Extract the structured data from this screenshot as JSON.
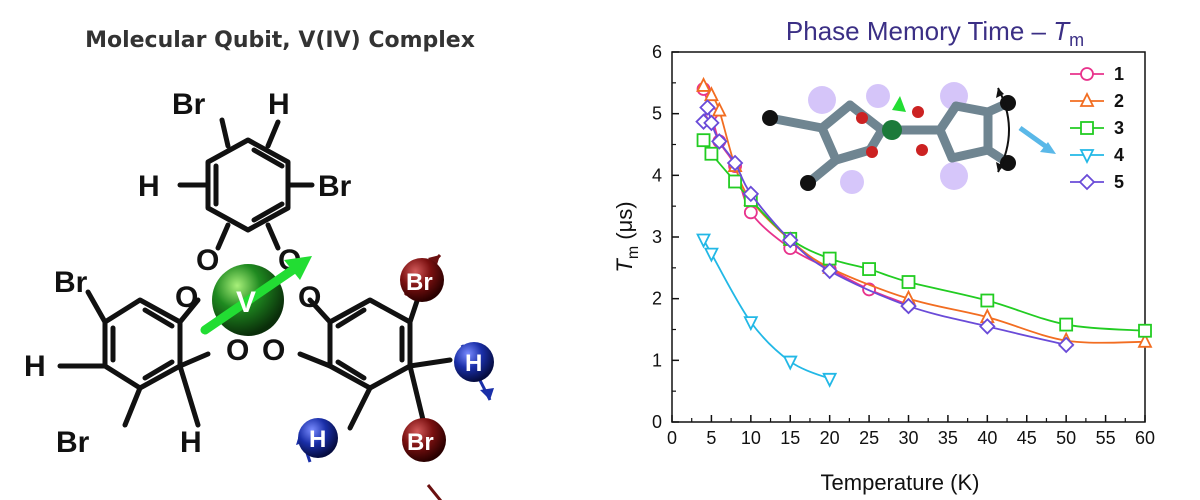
{
  "figure": {
    "left_title": "Molecular Qubit, V(IV) Complex",
    "metal_label": "V",
    "atom_labels": {
      "br": "Br",
      "h": "H",
      "o": "O"
    }
  },
  "chart_data": {
    "type": "line",
    "title_main": "Phase Memory Time – ",
    "title_symbol": "T",
    "title_subscript": "m",
    "ylabel_symbol": "T",
    "ylabel_subscript": "m",
    "ylabel_unit": " (μs)",
    "xlabel": "Temperature (K)",
    "xlim": [
      0,
      60
    ],
    "ylim": [
      0,
      6
    ],
    "xticks": [
      "0",
      "5",
      "10",
      "15",
      "20",
      "25",
      "30",
      "35",
      "40",
      "45",
      "50",
      "55",
      "60"
    ],
    "yticks": [
      "0",
      "1",
      "2",
      "3",
      "4",
      "5",
      "6"
    ],
    "legend_position": "top-right",
    "series": [
      {
        "name": "1",
        "color": "#e8338c",
        "marker": "circle",
        "x": [
          4,
          5,
          6,
          8,
          10,
          15,
          20,
          25,
          30
        ],
        "y": [
          5.4,
          5.0,
          4.55,
          4.15,
          3.4,
          2.82,
          2.48,
          2.15,
          1.9
        ]
      },
      {
        "name": "2",
        "color": "#f26d21",
        "marker": "triangle-up",
        "x": [
          4,
          5,
          6,
          8,
          10,
          15,
          20,
          30,
          40,
          50,
          60
        ],
        "y": [
          5.45,
          5.3,
          5.05,
          4.15,
          3.6,
          2.95,
          2.5,
          2.0,
          1.7,
          1.32,
          1.3
        ]
      },
      {
        "name": "3",
        "color": "#22cc22",
        "marker": "square",
        "x": [
          4,
          5,
          8,
          10,
          15,
          20,
          25,
          30,
          40,
          50,
          60
        ],
        "y": [
          4.57,
          4.35,
          3.9,
          3.6,
          2.97,
          2.65,
          2.48,
          2.27,
          1.97,
          1.58,
          1.48
        ]
      },
      {
        "name": "4",
        "color": "#22b8e6",
        "marker": "triangle-down",
        "x": [
          4,
          5,
          10,
          15,
          20
        ],
        "y": [
          2.96,
          2.73,
          1.62,
          0.98,
          0.7
        ]
      },
      {
        "name": "5",
        "color": "#6a4bd8",
        "marker": "diamond",
        "x": [
          4,
          4.5,
          5,
          6,
          8,
          10,
          15,
          20,
          30,
          40,
          50
        ],
        "y": [
          4.87,
          5.1,
          4.85,
          4.55,
          4.2,
          3.7,
          2.95,
          2.45,
          1.88,
          1.55,
          1.25
        ]
      }
    ]
  }
}
